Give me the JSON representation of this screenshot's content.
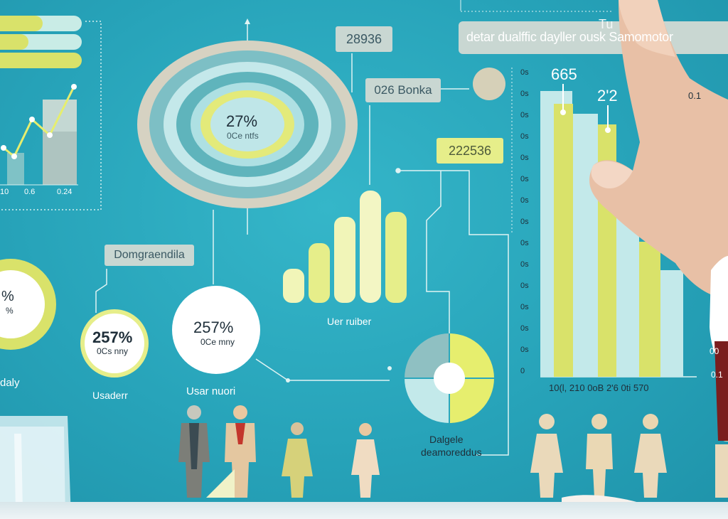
{
  "top_right_banner": {
    "line1": "Tu",
    "line2": "detar dualffic dayller ousk Samomotor"
  },
  "badges": {
    "top_number": "28936",
    "mid_number": "026 Bonka",
    "yellow_number": "222536",
    "demographic": "Domgraendila"
  },
  "donut_main": {
    "value": "27%",
    "sub": "0Ce ntfs"
  },
  "small_circles": [
    {
      "value": "257%",
      "sub": "0Cs nny",
      "caption": "Usaderr"
    },
    {
      "value": "257%",
      "sub": "0Ce mny",
      "caption": "Usar nuori"
    }
  ],
  "left_circle": {
    "value": "%",
    "sub": "%",
    "caption": "daly"
  },
  "mini_chart_ticks": [
    "10",
    "0.6",
    "0.24"
  ],
  "center_bars_caption": "Uer ruiber",
  "pie_caption": {
    "line1": "Dalgele",
    "line2": "deamoreddus"
  },
  "right_chart": {
    "top_labels": [
      "665",
      "2'2"
    ],
    "right_label": "0.1",
    "y_ticks": [
      "0s",
      "0s",
      "0s",
      "0s",
      "0s",
      "0s",
      "0s",
      "0s",
      "0s",
      "0s",
      "0s",
      "0s",
      "0s",
      "0s",
      "0"
    ],
    "x_ticks": "10(l, 210 0oB 2'6 0ti 570",
    "far_right_ticks": [
      "00",
      "0.1"
    ]
  },
  "colors": {
    "background": "#2aa7bd",
    "yellow": "#d9e26a",
    "pale_yellow": "#f1f5b8",
    "pale_cyan": "#c3e9ea",
    "beige": "#d8d3c1",
    "teal_ring": "#5fb4bc"
  },
  "icons": {
    "figures": "person-icon",
    "hand": "hand-icon"
  }
}
